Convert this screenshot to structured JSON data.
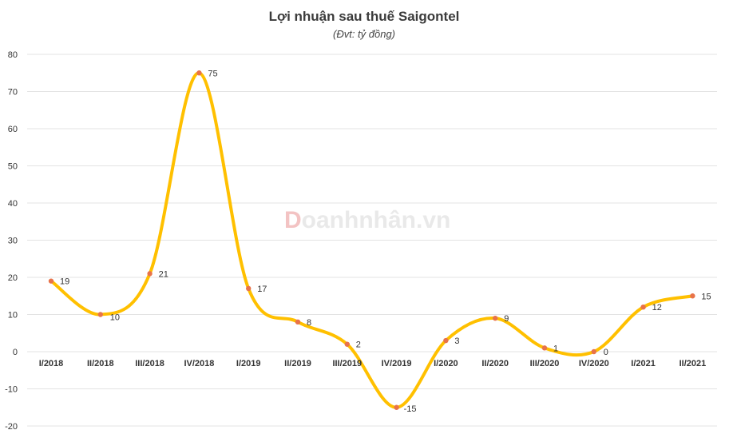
{
  "chart_data": {
    "type": "line",
    "title": "Lợi nhuận sau thuế Saigontel",
    "subtitle": "(Đvt: tỷ đồng)",
    "categories": [
      "I/2018",
      "II/2018",
      "III/2018",
      "IV/2018",
      "I/2019",
      "II/2019",
      "III/2019",
      "IV/2019",
      "I/2020",
      "II/2020",
      "III/2020",
      "IV/2020",
      "I/2021",
      "II/2021"
    ],
    "series": [
      {
        "values": [
          19,
          10,
          21,
          75,
          17,
          8,
          2,
          -15,
          3,
          9,
          1,
          0,
          12,
          15
        ]
      }
    ],
    "data_labels": [
      "19",
      "10",
      "21",
      "75",
      "17",
      "8",
      "2",
      "-15",
      "3",
      "9",
      "1",
      "0",
      "12",
      "15"
    ],
    "yticks": [
      -20,
      -10,
      0,
      10,
      20,
      30,
      40,
      50,
      60,
      70,
      80
    ],
    "ylim": [
      -20,
      80
    ],
    "grid": true,
    "legend": "none",
    "line_color": "#FFC000",
    "marker_color": "#E8734A"
  },
  "watermark": {
    "first_letter": "D",
    "rest": "oanhnhân.vn"
  }
}
